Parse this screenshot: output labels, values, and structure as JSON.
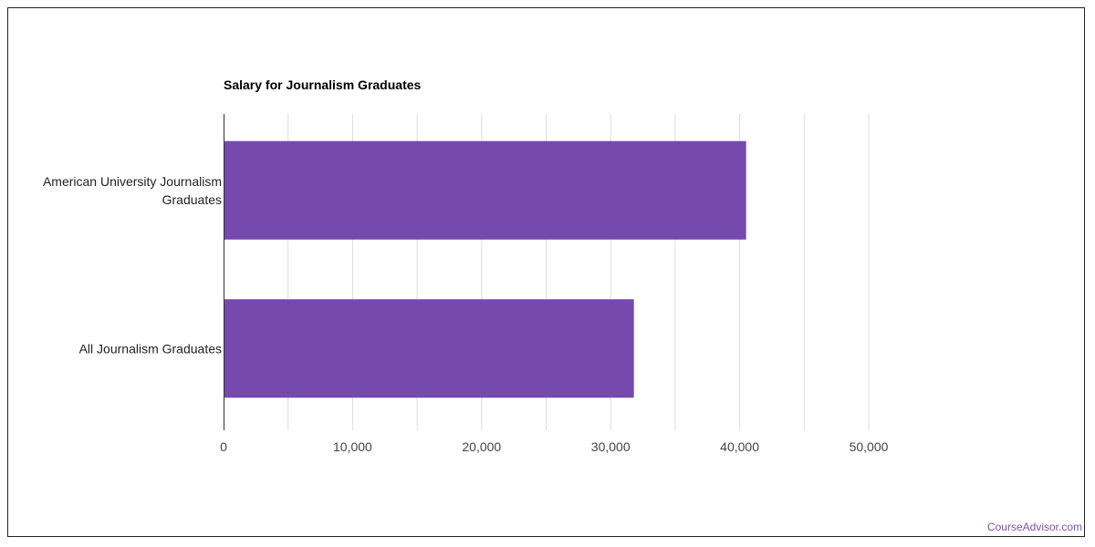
{
  "chart_data": {
    "type": "bar",
    "orientation": "horizontal",
    "title": "Salary for Journalism Graduates",
    "categories": [
      [
        "American University Journalism",
        "Graduates"
      ],
      [
        "All Journalism Graduates"
      ]
    ],
    "values": [
      40500,
      31800
    ],
    "xlim": [
      0,
      50000
    ],
    "xticks": [
      0,
      10000,
      20000,
      30000,
      40000,
      50000
    ],
    "xtick_labels": [
      "0",
      "10,000",
      "20,000",
      "30,000",
      "40,000",
      "50,000"
    ],
    "grid": true,
    "bar_color": "#7549ad"
  },
  "footer": {
    "source": "CourseAdvisor.com"
  }
}
